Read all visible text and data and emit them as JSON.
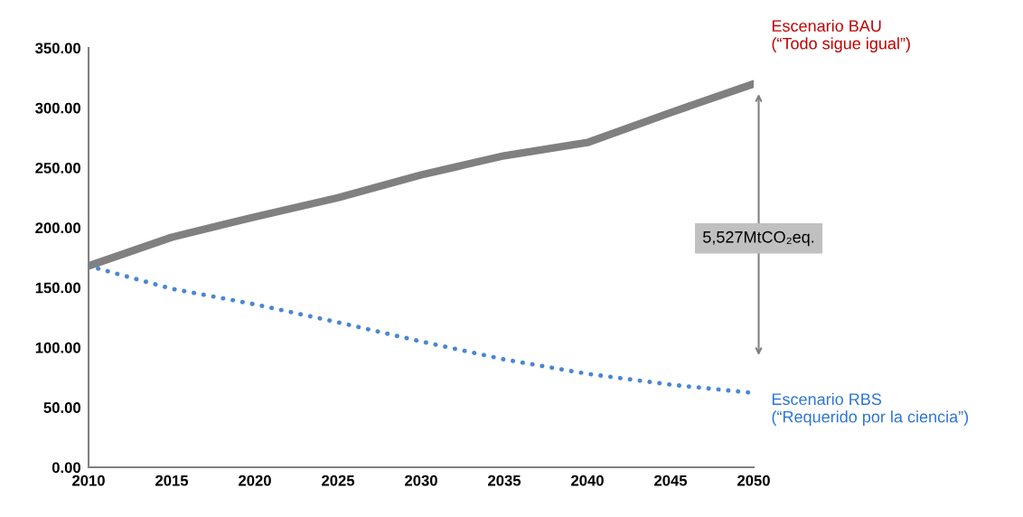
{
  "chart_data": {
    "type": "line",
    "x": [
      2010,
      2015,
      2020,
      2025,
      2030,
      2035,
      2040,
      2045,
      2050
    ],
    "series": [
      {
        "name": "Escenario BAU\n(“Todo sigue igual”)",
        "color": "#808080",
        "line_style": "solid",
        "values": [
          168,
          192,
          209,
          225,
          244,
          260,
          271,
          296,
          320
        ]
      },
      {
        "name": "Escenario RBS\n(“Requerido por la ciencia”)",
        "color": "#4a86d4",
        "line_style": "dotted",
        "values": [
          168,
          149,
          136,
          121,
          105,
          90,
          78,
          69,
          62
        ]
      }
    ],
    "xlim": [
      2010,
      2050
    ],
    "xticks": [
      2010,
      2015,
      2020,
      2025,
      2030,
      2035,
      2040,
      2045,
      2050
    ],
    "ylim": [
      0,
      350
    ],
    "yticks": [
      {
        "value": 0,
        "label": "0.00"
      },
      {
        "value": 50,
        "label": "50.00"
      },
      {
        "value": 100,
        "label": "100.00"
      },
      {
        "value": 150,
        "label": "150.00"
      },
      {
        "value": 200,
        "label": "200.00"
      },
      {
        "value": 250,
        "label": "250.00"
      },
      {
        "value": 300,
        "label": "300.00"
      },
      {
        "value": 350,
        "label": "350.00"
      }
    ],
    "annotations": [
      "5,527MtCO₂eq."
    ],
    "grid": false,
    "legend": false
  }
}
